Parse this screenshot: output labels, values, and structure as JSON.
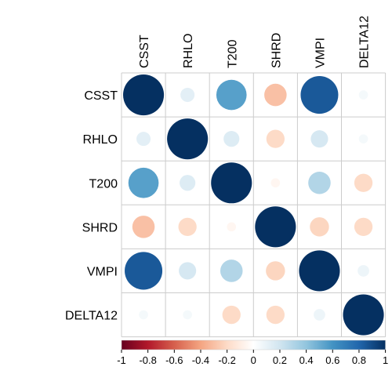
{
  "chart_data": {
    "type": "heatmap",
    "variables": [
      "CSST",
      "RHLO",
      "T200",
      "SHRD",
      "VMPI",
      "DELTA12"
    ],
    "matrix": [
      [
        1.0,
        0.12,
        0.55,
        -0.3,
        0.85,
        0.05
      ],
      [
        0.12,
        1.0,
        0.15,
        -0.2,
        0.18,
        0.05
      ],
      [
        0.55,
        0.15,
        1.0,
        -0.05,
        0.3,
        -0.2
      ],
      [
        -0.3,
        -0.2,
        -0.05,
        1.0,
        -0.22,
        -0.2
      ],
      [
        0.85,
        0.18,
        0.3,
        -0.22,
        1.0,
        0.08
      ],
      [
        0.05,
        0.05,
        -0.2,
        -0.2,
        0.08,
        1.0
      ]
    ],
    "colorbar": {
      "range": [
        -1,
        1
      ],
      "ticks": [
        "-1",
        "-0.8",
        "-0.6",
        "-0.4",
        "-0.2",
        "0",
        "0.2",
        "0.4",
        "0.6",
        "0.8",
        "1"
      ],
      "colors": [
        "#67001F",
        "#B2182B",
        "#D6604D",
        "#F4A582",
        "#FDDBC7",
        "#FFFFFF",
        "#D1E5F0",
        "#92C5DE",
        "#4393C3",
        "#2166AC",
        "#053061"
      ]
    },
    "grid": true,
    "legend": "bottom"
  }
}
